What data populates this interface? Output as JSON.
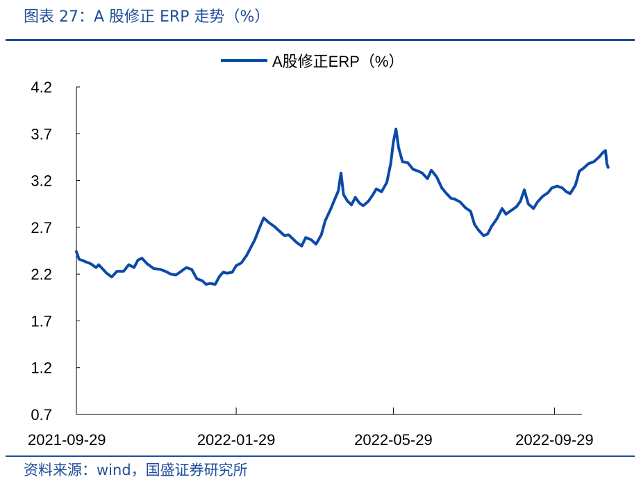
{
  "figure": {
    "title": "图表 27：A 股修正 ERP 走势（%）",
    "source": "资料来源：wind，国盛证券研究所"
  },
  "colors": {
    "accent": "#1f4e9a",
    "series": "#0c4aa8",
    "axis": "#000000",
    "text": "#000000"
  },
  "chart_data": {
    "type": "line",
    "title": "",
    "xlabel": "",
    "ylabel": "",
    "ylim": [
      0.7,
      4.2
    ],
    "yticks": [
      "4.2",
      "3.7",
      "3.2",
      "2.7",
      "2.2",
      "1.7",
      "1.2",
      "0.7"
    ],
    "ytick_values": [
      4.2,
      3.7,
      3.2,
      2.7,
      2.2,
      1.7,
      1.2,
      0.7
    ],
    "xlim": [
      "2021-09-29",
      "2022-10-20"
    ],
    "xticks": [
      "2021-09-29",
      "2022-01-29",
      "2022-05-29",
      "2022-09-29"
    ],
    "grid": false,
    "legend": "top-center",
    "series": [
      {
        "name": "A股修正ERP（%）",
        "points": [
          [
            "2021-09-29",
            2.44
          ],
          [
            "2021-10-01",
            2.36
          ],
          [
            "2021-10-10",
            2.31
          ],
          [
            "2021-10-14",
            2.27
          ],
          [
            "2021-10-16",
            2.3
          ],
          [
            "2021-10-22",
            2.21
          ],
          [
            "2021-10-26",
            2.17
          ],
          [
            "2021-10-30",
            2.23
          ],
          [
            "2021-11-04",
            2.23
          ],
          [
            "2021-11-08",
            2.3
          ],
          [
            "2021-11-12",
            2.27
          ],
          [
            "2021-11-15",
            2.35
          ],
          [
            "2021-11-18",
            2.37
          ],
          [
            "2021-11-22",
            2.31
          ],
          [
            "2021-11-27",
            2.26
          ],
          [
            "2021-12-02",
            2.25
          ],
          [
            "2021-12-06",
            2.23
          ],
          [
            "2021-12-10",
            2.2
          ],
          [
            "2021-12-14",
            2.19
          ],
          [
            "2021-12-18",
            2.23
          ],
          [
            "2021-12-22",
            2.27
          ],
          [
            "2021-12-26",
            2.25
          ],
          [
            "2021-12-30",
            2.15
          ],
          [
            "2022-01-03",
            2.13
          ],
          [
            "2022-01-06",
            2.09
          ],
          [
            "2022-01-09",
            2.1
          ],
          [
            "2022-01-13",
            2.09
          ],
          [
            "2022-01-16",
            2.17
          ],
          [
            "2022-01-19",
            2.22
          ],
          [
            "2022-01-22",
            2.21
          ],
          [
            "2022-01-26",
            2.22
          ],
          [
            "2022-01-29",
            2.29
          ],
          [
            "2022-02-02",
            2.32
          ],
          [
            "2022-02-06",
            2.4
          ],
          [
            "2022-02-09",
            2.48
          ],
          [
            "2022-02-12",
            2.56
          ],
          [
            "2022-02-16",
            2.7
          ],
          [
            "2022-02-19",
            2.8
          ],
          [
            "2022-02-23",
            2.75
          ],
          [
            "2022-02-27",
            2.71
          ],
          [
            "2022-03-03",
            2.66
          ],
          [
            "2022-03-07",
            2.61
          ],
          [
            "2022-03-10",
            2.62
          ],
          [
            "2022-03-13",
            2.58
          ],
          [
            "2022-03-16",
            2.54
          ],
          [
            "2022-03-20",
            2.5
          ],
          [
            "2022-03-23",
            2.59
          ],
          [
            "2022-03-27",
            2.57
          ],
          [
            "2022-03-31",
            2.52
          ],
          [
            "2022-04-04",
            2.62
          ],
          [
            "2022-04-07",
            2.77
          ],
          [
            "2022-04-11",
            2.89
          ],
          [
            "2022-04-14",
            2.99
          ],
          [
            "2022-04-17",
            3.09
          ],
          [
            "2022-04-19",
            3.28
          ],
          [
            "2022-04-21",
            3.05
          ],
          [
            "2022-04-24",
            2.98
          ],
          [
            "2022-04-27",
            2.94
          ],
          [
            "2022-04-30",
            3.02
          ],
          [
            "2022-05-03",
            2.96
          ],
          [
            "2022-05-06",
            2.93
          ],
          [
            "2022-05-10",
            2.98
          ],
          [
            "2022-05-13",
            3.04
          ],
          [
            "2022-05-16",
            3.11
          ],
          [
            "2022-05-20",
            3.08
          ],
          [
            "2022-05-24",
            3.18
          ],
          [
            "2022-05-27",
            3.38
          ],
          [
            "2022-05-29",
            3.61
          ],
          [
            "2022-05-31",
            3.75
          ],
          [
            "2022-06-02",
            3.55
          ],
          [
            "2022-06-05",
            3.4
          ],
          [
            "2022-06-09",
            3.39
          ],
          [
            "2022-06-13",
            3.32
          ],
          [
            "2022-06-17",
            3.3
          ],
          [
            "2022-06-20",
            3.28
          ],
          [
            "2022-06-24",
            3.22
          ],
          [
            "2022-06-27",
            3.31
          ],
          [
            "2022-07-01",
            3.24
          ],
          [
            "2022-07-05",
            3.12
          ],
          [
            "2022-07-08",
            3.07
          ],
          [
            "2022-07-12",
            3.01
          ],
          [
            "2022-07-15",
            3.0
          ],
          [
            "2022-07-19",
            2.97
          ],
          [
            "2022-07-23",
            2.91
          ],
          [
            "2022-07-27",
            2.87
          ],
          [
            "2022-07-30",
            2.73
          ],
          [
            "2022-08-02",
            2.67
          ],
          [
            "2022-08-06",
            2.61
          ],
          [
            "2022-08-09",
            2.63
          ],
          [
            "2022-08-12",
            2.71
          ],
          [
            "2022-08-16",
            2.79
          ],
          [
            "2022-08-20",
            2.9
          ],
          [
            "2022-08-23",
            2.84
          ],
          [
            "2022-08-27",
            2.88
          ],
          [
            "2022-08-31",
            2.92
          ],
          [
            "2022-09-03",
            2.98
          ],
          [
            "2022-09-06",
            3.1
          ],
          [
            "2022-09-09",
            2.95
          ],
          [
            "2022-09-13",
            2.9
          ],
          [
            "2022-09-16",
            2.97
          ],
          [
            "2022-09-20",
            3.03
          ],
          [
            "2022-09-24",
            3.07
          ],
          [
            "2022-09-27",
            3.12
          ],
          [
            "2022-10-01",
            3.14
          ],
          [
            "2022-10-05",
            3.12
          ],
          [
            "2022-10-08",
            3.08
          ],
          [
            "2022-10-11",
            3.06
          ],
          [
            "2022-10-15",
            3.15
          ],
          [
            "2022-10-18",
            3.3
          ],
          [
            "2022-10-21",
            3.33
          ],
          [
            "2022-10-25",
            3.38
          ],
          [
            "2022-10-29",
            3.4
          ],
          [
            "2022-11-02",
            3.45
          ],
          [
            "2022-11-05",
            3.5
          ],
          [
            "2022-11-07",
            3.52
          ],
          [
            "2022-11-08",
            3.38
          ],
          [
            "2022-11-09",
            3.34
          ]
        ]
      }
    ]
  }
}
